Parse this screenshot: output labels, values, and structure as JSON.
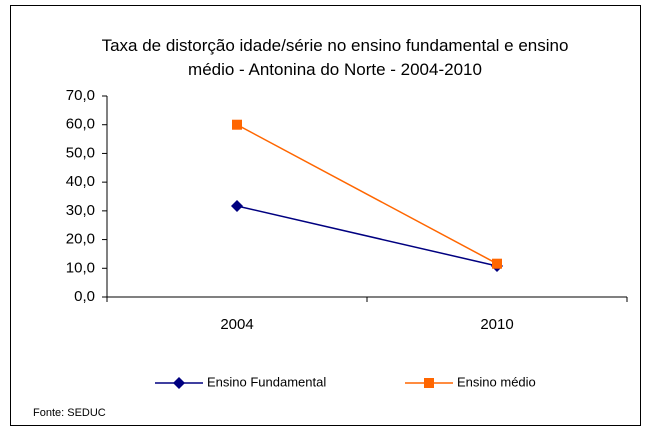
{
  "chart_data": {
    "type": "line",
    "title": "Taxa de distorção idade/série no ensino fundamental e ensino médio - Antonina do Norte - 2004-2010",
    "categories": [
      "2004",
      "2010"
    ],
    "series": [
      {
        "name": "Ensino Fundamental",
        "color": "#000080",
        "marker": "diamond",
        "values": [
          31.7,
          10.8
        ]
      },
      {
        "name": "Ensino médio",
        "color": "#ff6600",
        "marker": "square",
        "values": [
          60.0,
          11.6
        ]
      }
    ],
    "ylim": [
      0,
      70
    ],
    "yticks": [
      {
        "value": 0,
        "label": "0,0"
      },
      {
        "value": 10,
        "label": "10,0"
      },
      {
        "value": 20,
        "label": "20,0"
      },
      {
        "value": 30,
        "label": "30,0"
      },
      {
        "value": 40,
        "label": "40,0"
      },
      {
        "value": 50,
        "label": "50,0"
      },
      {
        "value": 60,
        "label": "60,0"
      },
      {
        "value": 70,
        "label": "70,0"
      }
    ],
    "grid": false,
    "legend": "bottom",
    "source": "Fonte: SEDUC"
  }
}
